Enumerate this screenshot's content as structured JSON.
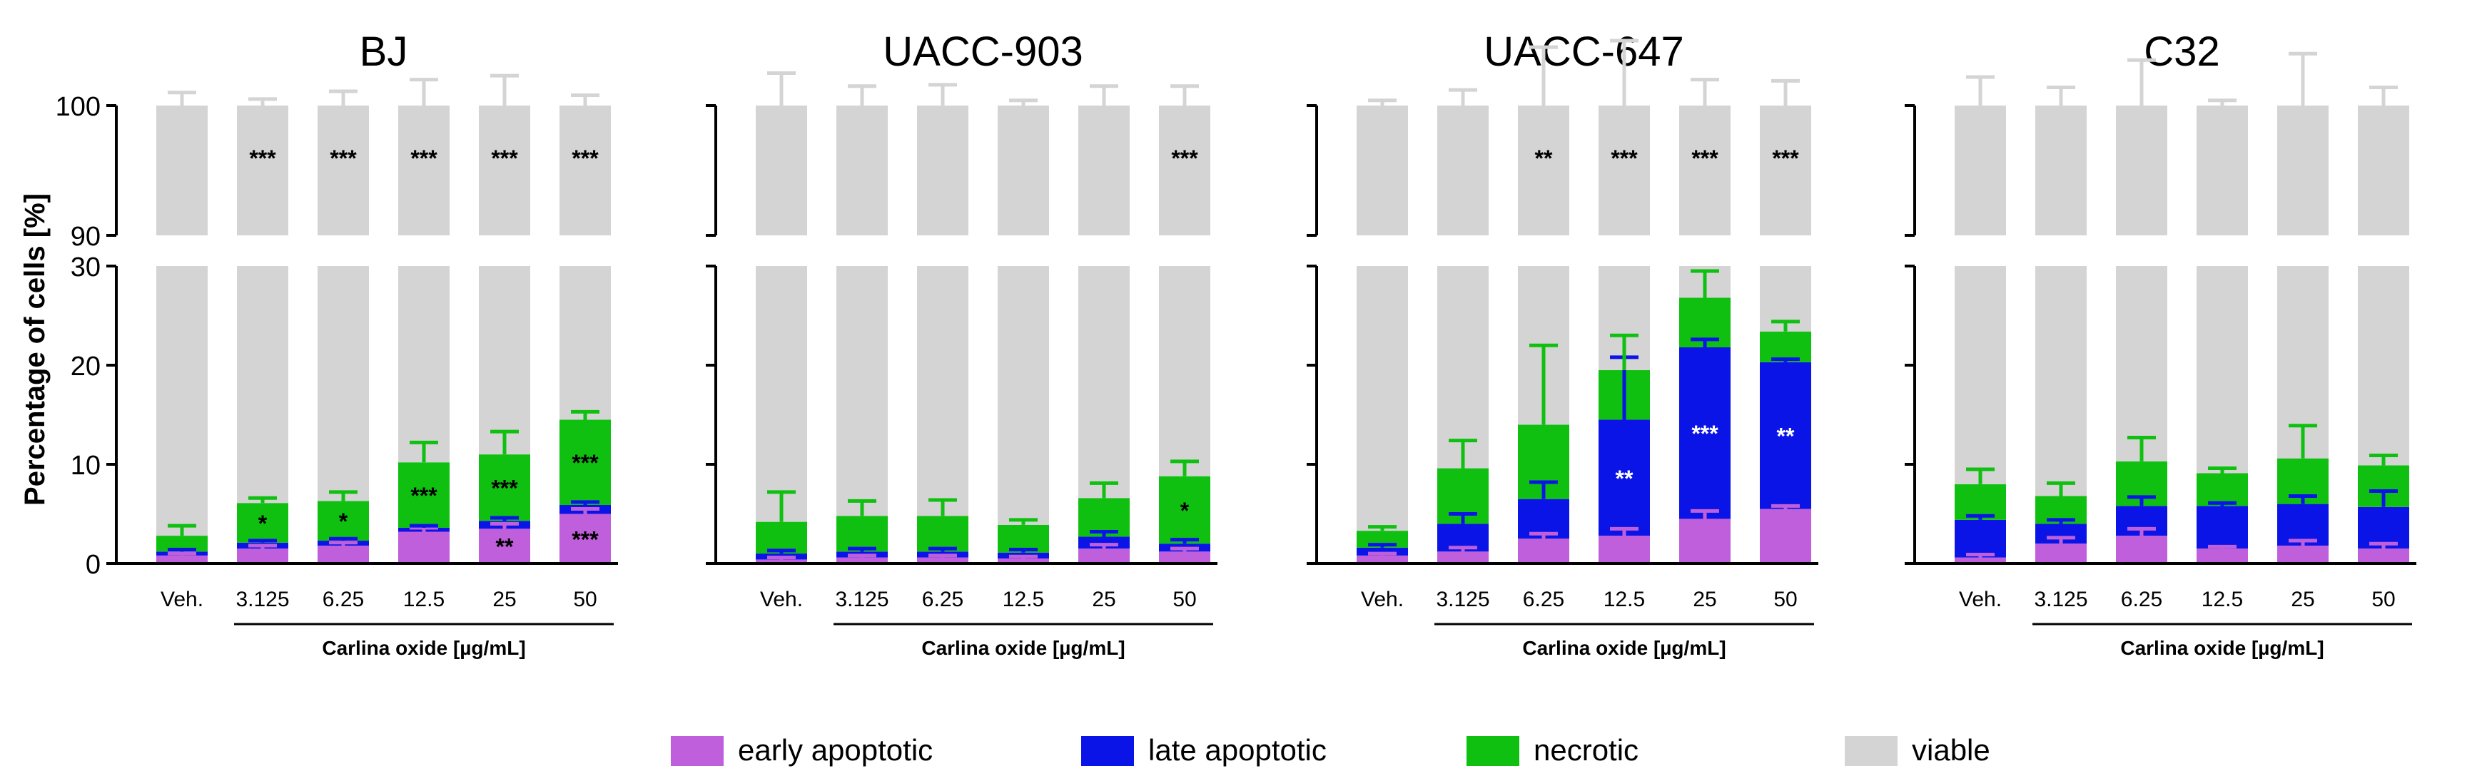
{
  "figure": {
    "ylabel": "Percentage of cells [%]",
    "xlabel": "Carlina oxide [µg/mL]",
    "categories": [
      "Veh.",
      "3.125",
      "6.25",
      "12.5",
      "25",
      "50"
    ],
    "upper_axis": {
      "ylim": [
        90,
        100
      ],
      "ticks": [
        "90",
        "100"
      ]
    },
    "lower_axis": {
      "ylim": [
        0,
        30
      ],
      "ticks": [
        "0",
        "10",
        "20",
        "30"
      ]
    },
    "colors": {
      "early": "#bf5fdb",
      "late": "#0a14e6",
      "necrotic": "#10c010",
      "viable": "#d4d4d4"
    }
  },
  "legend": [
    {
      "key": "early",
      "label": "early apoptotic",
      "color": "#bf5fdb"
    },
    {
      "key": "late",
      "label": "late apoptotic",
      "color": "#0a14e6"
    },
    {
      "key": "necrotic",
      "label": "necrotic",
      "color": "#10c010"
    },
    {
      "key": "viable",
      "label": "viable",
      "color": "#d4d4d4"
    }
  ],
  "chart_data": [
    {
      "type": "bar",
      "title": "BJ",
      "categories": [
        "Veh.",
        "3.125",
        "6.25",
        "12.5",
        "25",
        "50"
      ],
      "stacked": true,
      "series": [
        {
          "name": "early apoptotic",
          "values": [
            0.8,
            1.5,
            1.8,
            3.2,
            3.5,
            5.0
          ],
          "err": [
            0.2,
            0.3,
            0.3,
            0.4,
            0.5,
            0.5
          ]
        },
        {
          "name": "late apoptotic",
          "values": [
            0.4,
            0.6,
            0.5,
            0.4,
            0.8,
            0.9
          ],
          "err": [
            0.2,
            0.2,
            0.2,
            0.2,
            0.3,
            0.3
          ]
        },
        {
          "name": "necrotic",
          "values": [
            1.6,
            4.0,
            4.0,
            6.6,
            6.7,
            8.6
          ],
          "err": [
            1.0,
            0.5,
            0.9,
            2.0,
            2.3,
            0.8
          ]
        },
        {
          "name": "viable",
          "values": [
            97.2,
            93.9,
            93.7,
            89.8,
            89.0,
            85.5
          ],
          "err": [
            1.0,
            0.5,
            1.1,
            2.0,
            2.3,
            0.8
          ]
        }
      ],
      "significance": {
        "viable": [
          "",
          "***",
          "***",
          "***",
          "***",
          "***"
        ],
        "necrotic": [
          "",
          "*",
          "*",
          "***",
          "***",
          "***"
        ],
        "early": [
          "",
          "",
          "",
          "",
          "**",
          "***"
        ]
      }
    },
    {
      "type": "bar",
      "title": "UACC-903",
      "categories": [
        "Veh.",
        "3.125",
        "6.25",
        "12.5",
        "25",
        "50"
      ],
      "stacked": true,
      "series": [
        {
          "name": "early apoptotic",
          "values": [
            0.4,
            0.6,
            0.6,
            0.5,
            1.5,
            1.2
          ],
          "err": [
            0.2,
            0.2,
            0.2,
            0.2,
            0.4,
            0.3
          ]
        },
        {
          "name": "late apoptotic",
          "values": [
            0.6,
            0.6,
            0.6,
            0.6,
            1.2,
            0.8
          ],
          "err": [
            0.3,
            0.3,
            0.3,
            0.3,
            0.5,
            0.4
          ]
        },
        {
          "name": "necrotic",
          "values": [
            3.2,
            3.6,
            3.6,
            2.8,
            3.9,
            6.8
          ],
          "err": [
            3.0,
            1.5,
            1.6,
            0.5,
            1.5,
            1.5
          ]
        },
        {
          "name": "viable",
          "values": [
            95.8,
            95.2,
            95.2,
            96.1,
            93.4,
            91.2
          ],
          "err": [
            2.5,
            1.5,
            1.6,
            0.4,
            1.5,
            1.5
          ]
        }
      ],
      "significance": {
        "viable": [
          "",
          "",
          "",
          "",
          "",
          "***"
        ],
        "necrotic": [
          "",
          "",
          "",
          "",
          "",
          "*"
        ]
      }
    },
    {
      "type": "bar",
      "title": "UACC-647",
      "categories": [
        "Veh.",
        "3.125",
        "6.25",
        "12.5",
        "25",
        "50"
      ],
      "stacked": true,
      "series": [
        {
          "name": "early apoptotic",
          "values": [
            0.8,
            1.2,
            2.5,
            2.8,
            4.5,
            5.5
          ],
          "err": [
            0.2,
            0.4,
            0.5,
            0.7,
            0.8,
            0.3
          ]
        },
        {
          "name": "late apoptotic",
          "values": [
            0.8,
            2.8,
            4.0,
            11.7,
            17.3,
            14.8
          ],
          "err": [
            0.3,
            1.0,
            1.7,
            6.3,
            0.8,
            0.3
          ]
        },
        {
          "name": "necrotic",
          "values": [
            1.7,
            5.6,
            7.5,
            5.0,
            5.0,
            3.1
          ],
          "err": [
            0.4,
            2.8,
            8.0,
            3.5,
            2.7,
            1.0
          ]
        },
        {
          "name": "viable",
          "values": [
            96.7,
            90.4,
            86.0,
            80.5,
            73.2,
            76.6
          ],
          "err": [
            0.4,
            1.2,
            4.5,
            5.0,
            2.0,
            1.9
          ]
        }
      ],
      "significance": {
        "viable": [
          "",
          "",
          "**",
          "***",
          "***",
          "***"
        ],
        "late": [
          "",
          "",
          "",
          "**",
          "***",
          "**"
        ]
      }
    },
    {
      "type": "bar",
      "title": "C32",
      "categories": [
        "Veh.",
        "3.125",
        "6.25",
        "12.5",
        "25",
        "50"
      ],
      "stacked": true,
      "series": [
        {
          "name": "early apoptotic",
          "values": [
            0.6,
            2.0,
            2.8,
            1.5,
            1.8,
            1.5
          ],
          "err": [
            0.3,
            0.6,
            0.7,
            0.2,
            0.5,
            0.5
          ]
        },
        {
          "name": "late apoptotic",
          "values": [
            3.8,
            2.0,
            3.0,
            4.3,
            4.2,
            4.2
          ],
          "err": [
            0.4,
            0.4,
            0.9,
            0.3,
            0.8,
            1.6
          ]
        },
        {
          "name": "necrotic",
          "values": [
            3.6,
            2.8,
            4.5,
            3.3,
            4.6,
            4.2
          ],
          "err": [
            1.5,
            1.3,
            2.4,
            0.5,
            3.3,
            1.0
          ]
        },
        {
          "name": "viable",
          "values": [
            92.0,
            93.2,
            89.7,
            90.9,
            89.4,
            90.1
          ],
          "err": [
            2.2,
            1.4,
            3.5,
            0.4,
            4.0,
            1.4
          ]
        }
      ],
      "significance": {}
    }
  ]
}
